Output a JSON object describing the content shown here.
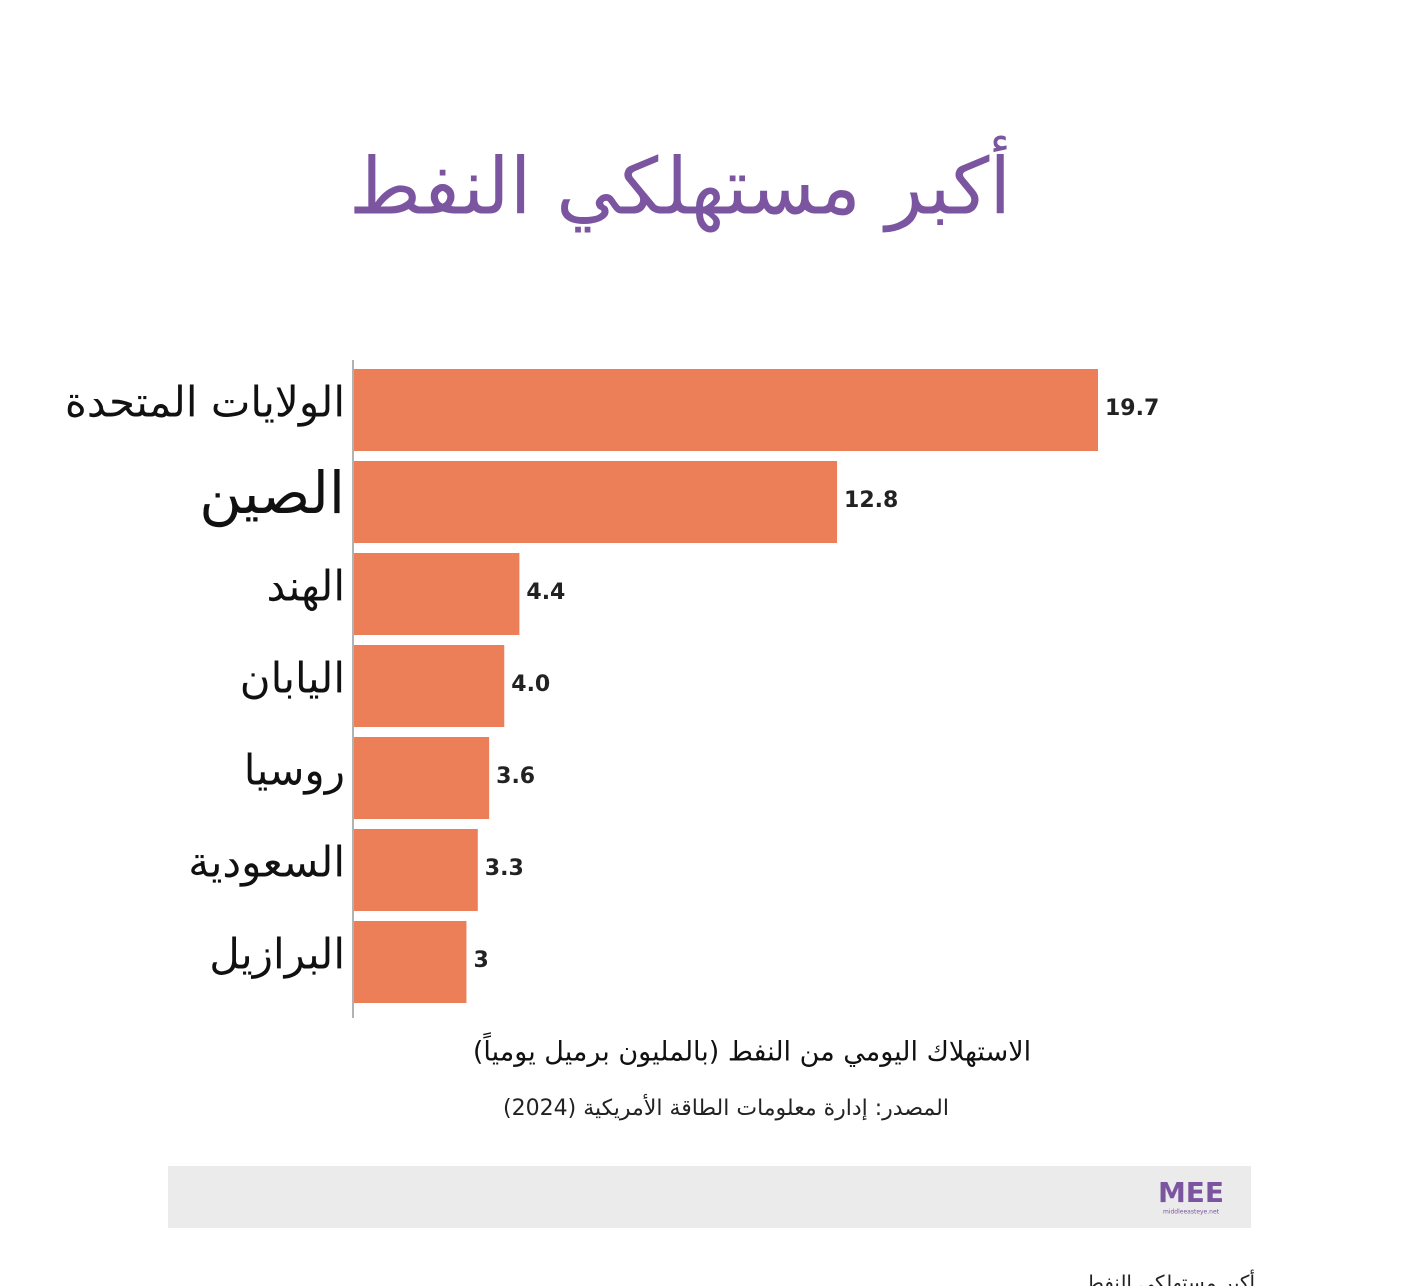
{
  "chart_data": {
    "type": "bar",
    "orientation": "horizontal",
    "title": "أكبر مستهلكي النفط",
    "categories": [
      "الولايات المتحدة",
      "الصين",
      "الهند",
      "اليابان",
      "روسيا",
      "السعودية",
      "البرازيل"
    ],
    "values": [
      19.7,
      12.8,
      4.4,
      4.0,
      3.6,
      3.3,
      3
    ],
    "value_labels": [
      "19.7",
      "12.8",
      "4.4",
      "4.0",
      "3.6",
      "3.3",
      "3"
    ],
    "color": "#ec7f58",
    "x_label": "الاستهلاك اليومي من النفط (بالمليون برميل يومياً)",
    "source": "المصدر: إدارة معلومات الطاقة الأمريكية (2024)"
  },
  "footer": {
    "logo": "MEE",
    "site": "middleeasteye.net",
    "caption": "أكبر مستهلكي النفط"
  }
}
